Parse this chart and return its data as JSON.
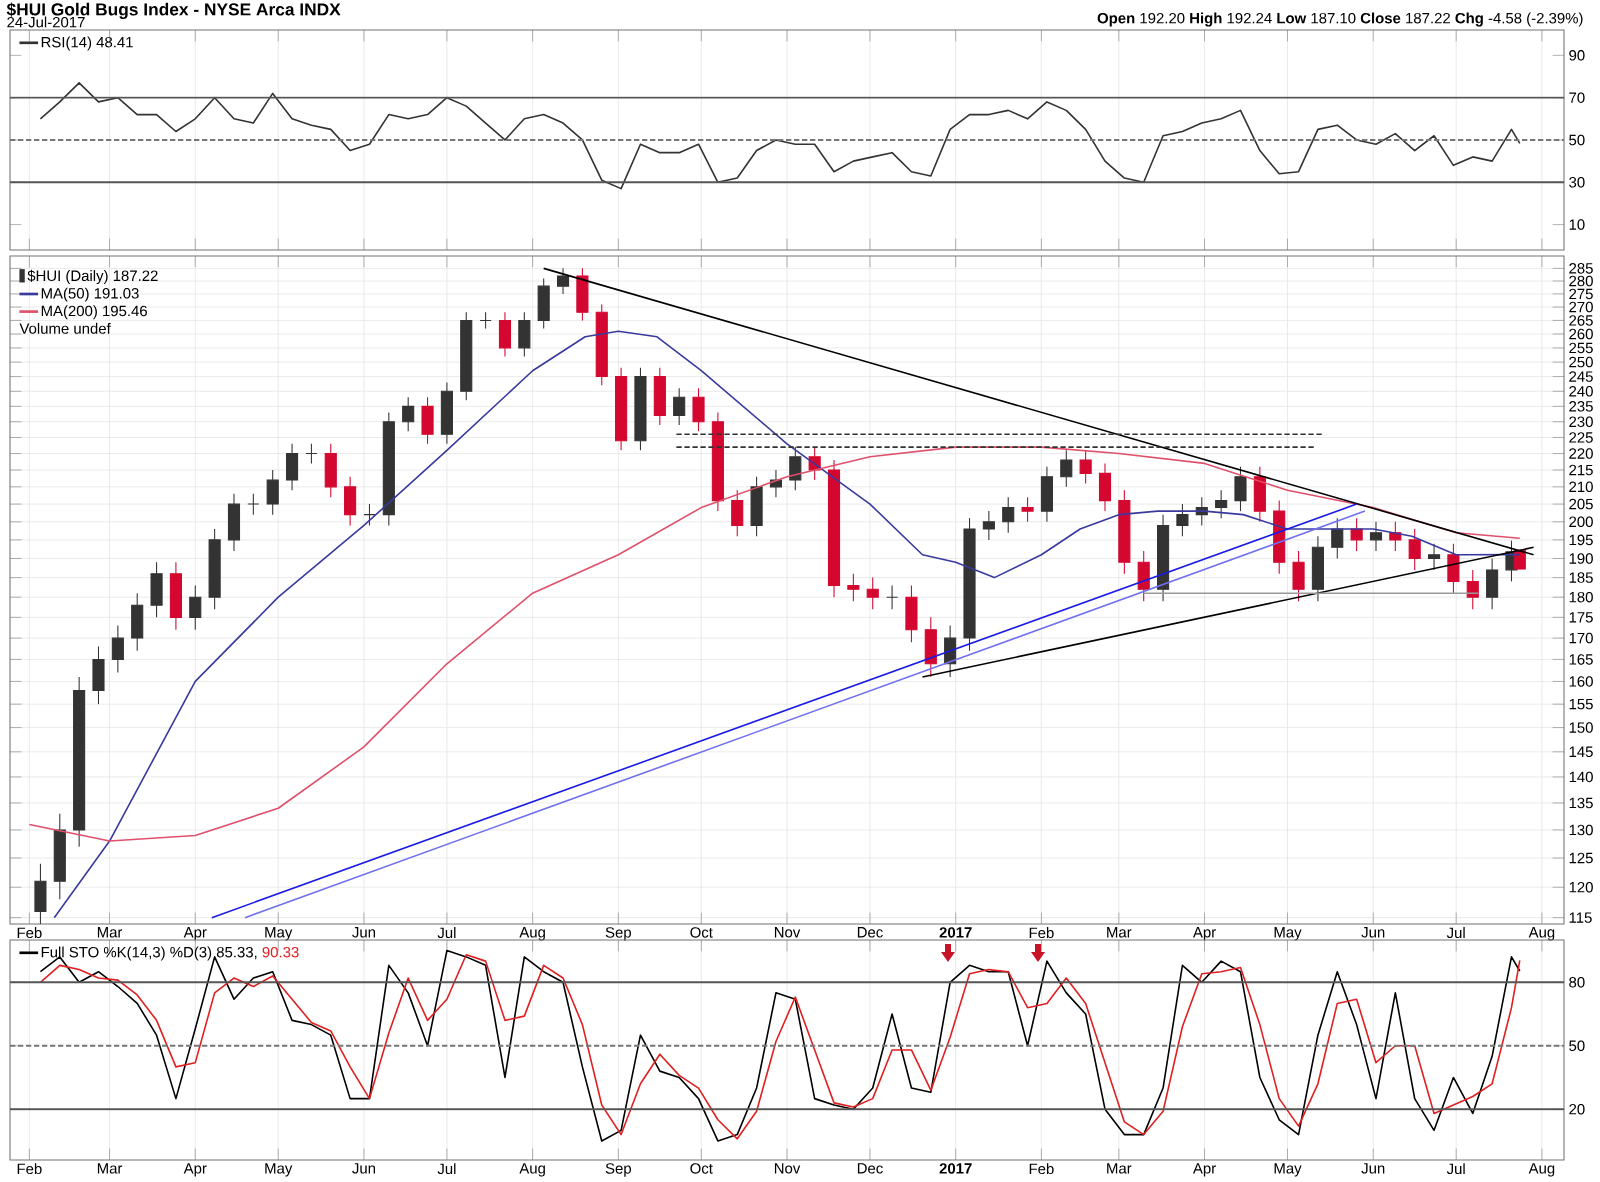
{
  "chart_data": [
    {
      "type": "line",
      "title": "$HUI Gold Bugs Index - NYSE Arca INDX",
      "subtitle": "24-Jul-2017",
      "annotations": [
        "**Open** 192.20 **High** 192.24 **Low** 187.10 **Close** 187.22 **Chg** -4.58 (-2.39%)"
      ],
      "x": [
        "2016-02-05",
        "2016-02-12",
        "2016-02-19",
        "2016-02-26",
        "2016-03-04",
        "2016-03-11",
        "2016-03-18",
        "2016-03-25",
        "2016-04-01",
        "2016-04-08",
        "2016-04-15",
        "2016-04-22",
        "2016-04-29",
        "2016-05-06",
        "2016-05-13",
        "2016-05-20",
        "2016-05-27",
        "2016-06-03",
        "2016-06-10",
        "2016-06-17",
        "2016-06-24",
        "2016-07-01",
        "2016-07-08",
        "2016-07-15",
        "2016-07-22",
        "2016-07-29",
        "2016-08-05",
        "2016-08-12",
        "2016-08-19",
        "2016-08-26",
        "2016-09-02",
        "2016-09-09",
        "2016-09-16",
        "2016-09-23",
        "2016-09-30",
        "2016-10-07",
        "2016-10-14",
        "2016-10-21",
        "2016-10-28",
        "2016-11-04",
        "2016-11-11",
        "2016-11-18",
        "2016-11-25",
        "2016-12-02",
        "2016-12-09",
        "2016-12-16",
        "2016-12-23",
        "2016-12-30",
        "2017-01-06",
        "2017-01-13",
        "2017-01-20",
        "2017-01-27",
        "2017-02-03",
        "2017-02-10",
        "2017-02-17",
        "2017-02-24",
        "2017-03-03",
        "2017-03-10",
        "2017-03-17",
        "2017-03-24",
        "2017-03-31",
        "2017-04-07",
        "2017-04-14",
        "2017-04-21",
        "2017-04-28",
        "2017-05-05",
        "2017-05-12",
        "2017-05-19",
        "2017-05-26",
        "2017-06-02",
        "2017-06-09",
        "2017-06-16",
        "2017-06-23",
        "2017-06-30",
        "2017-07-07",
        "2017-07-14",
        "2017-07-21",
        "2017-07-24"
      ],
      "series": [
        {
          "name": "RSI(14) 48.41",
          "color": "#333333",
          "values": [
            60,
            68,
            77,
            68,
            70,
            62,
            62,
            54,
            60,
            70,
            60,
            58,
            72,
            60,
            57,
            55,
            45,
            48,
            62,
            60,
            62,
            70,
            66,
            58,
            50,
            60,
            62,
            58,
            50,
            31,
            27,
            48,
            44,
            44,
            48,
            30,
            32,
            45,
            50,
            48,
            48,
            35,
            40,
            42,
            44,
            35,
            33,
            55,
            62,
            62,
            64,
            60,
            68,
            64,
            55,
            40,
            32,
            30,
            52,
            54,
            58,
            60,
            64,
            45,
            34,
            35,
            55,
            57,
            50,
            48,
            53,
            45,
            52,
            38,
            42,
            40,
            55,
            48.41
          ]
        }
      ],
      "xlim": [
        "2016-01-25",
        "2017-08-09"
      ],
      "ylim": [
        -2,
        102
      ],
      "xticks": [
        {
          "value": "2016-02-01",
          "label": null
        },
        {
          "value": "2016-03-01",
          "label": null
        },
        {
          "value": "2016-04-01",
          "label": null
        },
        {
          "value": "2016-05-01",
          "label": null
        },
        {
          "value": "2016-06-01",
          "label": null
        },
        {
          "value": "2016-07-01",
          "label": null
        },
        {
          "value": "2016-08-01",
          "label": null
        },
        {
          "value": "2016-09-01",
          "label": null
        },
        {
          "value": "2016-10-01",
          "label": null
        },
        {
          "value": "2016-11-01",
          "label": null
        },
        {
          "value": "2016-12-01",
          "label": null
        },
        {
          "value": "2017-01-01",
          "label": null
        },
        {
          "value": "2017-02-01",
          "label": null
        },
        {
          "value": "2017-03-01",
          "label": null
        },
        {
          "value": "2017-04-01",
          "label": null
        },
        {
          "value": "2017-05-01",
          "label": null
        },
        {
          "value": "2017-06-01",
          "label": null
        },
        {
          "value": "2017-07-01",
          "label": null
        },
        {
          "value": "2017-08-01",
          "label": null
        }
      ],
      "yticks": [
        10,
        30,
        50,
        70,
        90
      ],
      "ref_lines": [
        {
          "axis": "y",
          "value": 70,
          "color": "#555555"
        },
        {
          "axis": "y",
          "value": 30,
          "color": "#555555"
        },
        {
          "axis": "y",
          "value": 50,
          "color": "#777777",
          "line_style": "dashed"
        }
      ],
      "grid": "x",
      "legend": "top left",
      "tick_labels": "y"
    },
    {
      "type": "candlestick",
      "log": true,
      "annotations": [
        "Volume undef"
      ],
      "x": [
        "2016-02-05",
        "2016-02-12",
        "2016-02-19",
        "2016-02-26",
        "2016-03-04",
        "2016-03-11",
        "2016-03-18",
        "2016-03-25",
        "2016-04-01",
        "2016-04-08",
        "2016-04-15",
        "2016-04-22",
        "2016-04-29",
        "2016-05-06",
        "2016-05-13",
        "2016-05-20",
        "2016-05-27",
        "2016-06-03",
        "2016-06-10",
        "2016-06-17",
        "2016-06-24",
        "2016-07-01",
        "2016-07-08",
        "2016-07-15",
        "2016-07-22",
        "2016-07-29",
        "2016-08-05",
        "2016-08-12",
        "2016-08-19",
        "2016-08-26",
        "2016-09-02",
        "2016-09-09",
        "2016-09-16",
        "2016-09-23",
        "2016-09-30",
        "2016-10-07",
        "2016-10-14",
        "2016-10-21",
        "2016-10-28",
        "2016-11-04",
        "2016-11-11",
        "2016-11-18",
        "2016-11-25",
        "2016-12-02",
        "2016-12-09",
        "2016-12-16",
        "2016-12-23",
        "2016-12-30",
        "2017-01-06",
        "2017-01-13",
        "2017-01-20",
        "2017-01-27",
        "2017-02-03",
        "2017-02-10",
        "2017-02-17",
        "2017-02-24",
        "2017-03-03",
        "2017-03-10",
        "2017-03-17",
        "2017-03-24",
        "2017-03-31",
        "2017-04-07",
        "2017-04-14",
        "2017-04-21",
        "2017-04-28",
        "2017-05-05",
        "2017-05-12",
        "2017-05-19",
        "2017-05-26",
        "2017-06-02",
        "2017-06-09",
        "2017-06-16",
        "2017-06-23",
        "2017-06-30",
        "2017-07-07",
        "2017-07-14",
        "2017-07-21",
        "2017-07-24"
      ],
      "series": [
        {
          "type": "candlestick",
          "name": "$HUI (Daily) 187.22",
          "ohlc": [
            [
              116,
              124,
              113,
              121
            ],
            [
              121,
              133,
              118,
              130
            ],
            [
              130,
              161,
              127,
              158
            ],
            [
              158,
              168,
              155,
              165
            ],
            [
              165,
              173,
              162,
              170
            ],
            [
              170,
              181,
              167,
              178
            ],
            [
              178,
              189,
              175,
              186
            ],
            [
              186,
              189,
              172,
              175
            ],
            [
              175,
              183,
              172,
              180
            ],
            [
              180,
              198,
              177,
              195
            ],
            [
              195,
              208,
              192,
              205
            ],
            [
              205,
              208,
              202,
              205
            ],
            [
              205,
              215,
              202,
              212
            ],
            [
              212,
              223,
              209,
              220
            ],
            [
              220,
              223,
              217,
              220
            ],
            [
              220,
              223,
              207,
              210
            ],
            [
              210,
              213,
              199,
              202
            ],
            [
              202,
              205,
              199,
              202
            ],
            [
              202,
              233,
              199,
              230
            ],
            [
              230,
              238,
              227,
              235
            ],
            [
              235,
              238,
              223,
              226
            ],
            [
              226,
              243,
              223,
              240
            ],
            [
              240,
              268,
              237,
              265
            ],
            [
              265,
              268,
              262,
              265
            ],
            [
              265,
              268,
              252,
              255
            ],
            [
              255,
              268,
              252,
              265
            ],
            [
              265,
              281,
              262,
              278
            ],
            [
              278,
              285,
              275,
              282
            ],
            [
              282,
              285,
              265,
              268
            ],
            [
              268,
              271,
              242,
              245
            ],
            [
              245,
              248,
              221,
              224
            ],
            [
              224,
              248,
              221,
              245
            ],
            [
              245,
              248,
              229,
              232
            ],
            [
              232,
              241,
              229,
              238
            ],
            [
              238,
              241,
              227,
              230
            ],
            [
              230,
              233,
              203,
              206
            ],
            [
              206,
              209,
              196,
              199
            ],
            [
              199,
              213,
              196,
              210
            ],
            [
              210,
              215,
              207,
              212
            ],
            [
              212,
              222,
              209,
              219
            ],
            [
              219,
              222,
              212,
              215
            ],
            [
              215,
              218,
              180,
              183
            ],
            [
              183,
              186,
              179,
              182
            ],
            [
              182,
              185,
              177,
              180
            ],
            [
              180,
              183,
              177,
              180
            ],
            [
              180,
              183,
              169,
              172
            ],
            [
              172,
              175,
              161,
              164
            ],
            [
              164,
              173,
              161,
              170
            ],
            [
              170,
              201,
              167,
              198
            ],
            [
              198,
              203,
              195,
              200
            ],
            [
              200,
              207,
              197,
              204
            ],
            [
              204,
              207,
              200,
              203
            ],
            [
              203,
              216,
              200,
              213
            ],
            [
              213,
              221,
              210,
              218
            ],
            [
              218,
              221,
              211,
              214
            ],
            [
              214,
              217,
              203,
              206
            ],
            [
              206,
              209,
              186,
              189
            ],
            [
              189,
              192,
              179,
              182
            ],
            [
              182,
              202,
              179,
              199
            ],
            [
              199,
              205,
              196,
              202
            ],
            [
              202,
              207,
              199,
              204
            ],
            [
              204,
              209,
              201,
              206
            ],
            [
              206,
              216,
              203,
              213
            ],
            [
              213,
              216,
              200,
              203
            ],
            [
              203,
              206,
              186,
              189
            ],
            [
              189,
              192,
              179,
              182
            ],
            [
              182,
              196,
              179,
              193
            ],
            [
              193,
              201,
              190,
              198
            ],
            [
              198,
              201,
              192,
              195
            ],
            [
              195,
              200,
              192,
              197
            ],
            [
              197,
              200,
              192,
              195
            ],
            [
              195,
              198,
              187,
              190
            ],
            [
              190,
              194,
              187,
              191
            ],
            [
              191,
              194,
              181,
              184
            ],
            [
              184,
              187,
              177,
              180
            ],
            [
              180,
              190,
              177,
              187
            ],
            [
              187,
              194.8,
              184,
              191.8
            ],
            [
              192.2,
              192.24,
              187.1,
              187.22
            ]
          ],
          "colors": [
            "#333333",
            "#333333",
            "#333333",
            "#333333",
            "#333333",
            "#333333",
            "#333333",
            "#d3072f",
            "#333333",
            "#333333",
            "#333333",
            "#333333",
            "#333333",
            "#333333",
            "#333333",
            "#d3072f",
            "#d3072f",
            "#333333",
            "#333333",
            "#333333",
            "#d3072f",
            "#333333",
            "#333333",
            "#333333",
            "#d3072f",
            "#333333",
            "#333333",
            "#333333",
            "#d3072f",
            "#d3072f",
            "#d3072f",
            "#333333",
            "#d3072f",
            "#333333",
            "#d3072f",
            "#d3072f",
            "#d3072f",
            "#333333",
            "#333333",
            "#333333",
            "#d3072f",
            "#d3072f",
            "#d3072f",
            "#d3072f",
            "#333333",
            "#d3072f",
            "#d3072f",
            "#333333",
            "#333333",
            "#333333",
            "#333333",
            "#d3072f",
            "#333333",
            "#333333",
            "#d3072f",
            "#d3072f",
            "#d3072f",
            "#d3072f",
            "#333333",
            "#333333",
            "#333333",
            "#333333",
            "#333333",
            "#d3072f",
            "#d3072f",
            "#d3072f",
            "#333333",
            "#333333",
            "#d3072f",
            "#333333",
            "#d3072f",
            "#d3072f",
            "#333333",
            "#d3072f",
            "#d3072f",
            "#333333",
            "#333333",
            "#d3072f"
          ]
        },
        {
          "type": "line",
          "name": "MA(50) 191.03",
          "color": "#3a3a9e",
          "x": [
            "2016-02-10",
            "2016-03-01",
            "2016-04-01",
            "2016-05-01",
            "2016-06-01",
            "2016-07-01",
            "2016-08-01",
            "2016-08-20",
            "2016-09-01",
            "2016-09-15",
            "2016-10-01",
            "2016-11-01",
            "2016-12-01",
            "2016-12-20",
            "2017-01-01",
            "2017-01-15",
            "2017-02-01",
            "2017-02-15",
            "2017-03-01",
            "2017-03-15",
            "2017-04-01",
            "2017-04-15",
            "2017-05-01",
            "2017-05-15",
            "2017-06-01",
            "2017-06-15",
            "2017-07-01",
            "2017-07-24"
          ],
          "values": [
            115,
            128,
            160,
            180,
            199,
            221,
            247,
            259,
            261,
            259,
            247,
            223,
            205,
            191,
            189,
            185,
            191,
            198,
            202,
            203,
            203,
            202,
            198,
            198,
            198,
            196,
            191,
            191.03
          ]
        },
        {
          "type": "line",
          "name": "MA(200) 195.46",
          "color": "#e0506a",
          "x": [
            "2016-02-01",
            "2016-03-01",
            "2016-04-01",
            "2016-05-01",
            "2016-06-01",
            "2016-07-01",
            "2016-08-01",
            "2016-09-01",
            "2016-10-01",
            "2016-11-01",
            "2016-12-01",
            "2017-01-01",
            "2017-02-01",
            "2017-03-01",
            "2017-04-01",
            "2017-05-01",
            "2017-06-01",
            "2017-07-01",
            "2017-07-24"
          ],
          "values": [
            131,
            128,
            129,
            134,
            146,
            164,
            181,
            191,
            204,
            213,
            219,
            222,
            222,
            220,
            217,
            209,
            204,
            197,
            195.46
          ]
        },
        {
          "type": "line",
          "color": "#000000",
          "x": [
            "2016-08-05",
            "2017-07-29"
          ],
          "values": [
            285,
            191
          ]
        },
        {
          "type": "line",
          "color": "#000000",
          "x": [
            "2016-12-20",
            "2017-07-29"
          ],
          "values": [
            161,
            193
          ]
        },
        {
          "type": "line",
          "color": "#1a1ae6",
          "x": [
            "2016-04-07",
            "2017-05-26"
          ],
          "values": [
            115,
            205
          ]
        },
        {
          "type": "line",
          "color": "#7070f0",
          "x": [
            "2016-04-19",
            "2017-05-29"
          ],
          "values": [
            115,
            203
          ]
        },
        {
          "type": "line",
          "color": "#333333",
          "line_style": "dashed",
          "x": [
            "2016-09-22",
            "2017-05-14"
          ],
          "values": [
            226,
            226
          ]
        },
        {
          "type": "line",
          "color": "#333333",
          "line_style": "dashed",
          "x": [
            "2016-09-22",
            "2017-05-11"
          ],
          "values": [
            222,
            222
          ]
        },
        {
          "type": "line",
          "color": "#999999",
          "x": [
            "2017-03-10",
            "2017-07-09"
          ],
          "values": [
            181,
            181
          ]
        }
      ],
      "xlim": [
        "2016-01-25",
        "2017-08-09"
      ],
      "ylim": [
        114,
        290
      ],
      "xticks": [
        {
          "value": "2016-02-01",
          "label": "Feb"
        },
        {
          "value": "2016-03-01",
          "label": "Mar"
        },
        {
          "value": "2016-04-01",
          "label": "Apr"
        },
        {
          "value": "2016-05-01",
          "label": "May"
        },
        {
          "value": "2016-06-01",
          "label": "Jun"
        },
        {
          "value": "2016-07-01",
          "label": "Jul"
        },
        {
          "value": "2016-08-01",
          "label": "Aug"
        },
        {
          "value": "2016-09-01",
          "label": "Sep"
        },
        {
          "value": "2016-10-01",
          "label": "Oct"
        },
        {
          "value": "2016-11-01",
          "label": "Nov"
        },
        {
          "value": "2016-12-01",
          "label": "Dec"
        },
        {
          "value": "2017-01-01",
          "label": "**2017**"
        },
        {
          "value": "2017-02-01",
          "label": "Feb"
        },
        {
          "value": "2017-03-01",
          "label": "Mar"
        },
        {
          "value": "2017-04-01",
          "label": "Apr"
        },
        {
          "value": "2017-05-01",
          "label": "May"
        },
        {
          "value": "2017-06-01",
          "label": "Jun"
        },
        {
          "value": "2017-07-01",
          "label": "Jul"
        },
        {
          "value": "2017-08-01",
          "label": "Aug"
        }
      ],
      "yticks": [
        115,
        120,
        125,
        130,
        135,
        140,
        145,
        150,
        155,
        160,
        165,
        170,
        175,
        180,
        185,
        190,
        195,
        200,
        205,
        210,
        215,
        220,
        225,
        230,
        235,
        240,
        245,
        250,
        255,
        260,
        265,
        270,
        275,
        280,
        285
      ],
      "grid": true,
      "legend": "top left"
    },
    {
      "type": "line",
      "legend_title": "Full STO %K(14,3) %D(3)",
      "x": [
        "2016-02-05",
        "2016-02-12",
        "2016-02-19",
        "2016-02-26",
        "2016-03-04",
        "2016-03-11",
        "2016-03-18",
        "2016-03-25",
        "2016-04-01",
        "2016-04-08",
        "2016-04-15",
        "2016-04-22",
        "2016-04-29",
        "2016-05-06",
        "2016-05-13",
        "2016-05-20",
        "2016-05-27",
        "2016-06-03",
        "2016-06-10",
        "2016-06-17",
        "2016-06-24",
        "2016-07-01",
        "2016-07-08",
        "2016-07-15",
        "2016-07-22",
        "2016-07-29",
        "2016-08-05",
        "2016-08-12",
        "2016-08-19",
        "2016-08-26",
        "2016-09-02",
        "2016-09-09",
        "2016-09-16",
        "2016-09-23",
        "2016-09-30",
        "2016-10-07",
        "2016-10-14",
        "2016-10-21",
        "2016-10-28",
        "2016-11-04",
        "2016-11-11",
        "2016-11-18",
        "2016-11-25",
        "2016-12-02",
        "2016-12-09",
        "2016-12-16",
        "2016-12-23",
        "2016-12-30",
        "2017-01-06",
        "2017-01-13",
        "2017-01-20",
        "2017-01-27",
        "2017-02-03",
        "2017-02-10",
        "2017-02-17",
        "2017-02-24",
        "2017-03-03",
        "2017-03-10",
        "2017-03-17",
        "2017-03-24",
        "2017-03-31",
        "2017-04-07",
        "2017-04-14",
        "2017-04-21",
        "2017-04-28",
        "2017-05-05",
        "2017-05-12",
        "2017-05-19",
        "2017-05-26",
        "2017-06-02",
        "2017-06-09",
        "2017-06-16",
        "2017-06-23",
        "2017-06-30",
        "2017-07-07",
        "2017-07-14",
        "2017-07-21",
        "2017-07-24"
      ],
      "series": [
        {
          "name": "85.33,",
          "color": "#000000",
          "values": [
            85,
            92,
            80,
            85,
            78,
            70,
            55,
            25,
            58,
            92,
            72,
            82,
            85,
            62,
            60,
            55,
            25,
            25,
            88,
            75,
            50,
            95,
            92,
            88,
            35,
            92,
            85,
            80,
            40,
            5,
            10,
            55,
            38,
            35,
            25,
            5,
            8,
            30,
            75,
            72,
            25,
            22,
            20,
            30,
            65,
            30,
            28,
            80,
            88,
            85,
            85,
            50,
            90,
            75,
            65,
            20,
            8,
            8,
            30,
            88,
            80,
            90,
            85,
            35,
            15,
            8,
            55,
            85,
            60,
            25,
            75,
            25,
            10,
            35,
            18,
            45,
            92,
            85.33
          ]
        },
        {
          "name": "90.33",
          "color": "#e02020",
          "values": [
            80,
            88,
            86,
            82,
            81,
            74,
            62,
            40,
            42,
            75,
            82,
            78,
            83,
            72,
            61,
            57,
            40,
            25,
            56,
            82,
            62,
            72,
            93,
            90,
            62,
            64,
            88,
            82,
            60,
            22,
            8,
            32,
            46,
            36,
            30,
            15,
            6,
            19,
            52,
            73,
            48,
            23,
            21,
            25,
            48,
            48,
            29,
            54,
            84,
            86,
            85,
            68,
            70,
            82,
            70,
            42,
            14,
            8,
            19,
            59,
            84,
            85,
            87,
            60,
            25,
            12,
            32,
            70,
            72,
            42,
            50,
            50,
            18,
            22,
            26,
            32,
            68,
            90.33
          ]
        }
      ],
      "xlim": [
        "2016-01-25",
        "2017-08-09"
      ],
      "ylim": [
        -4,
        100
      ],
      "xticks": [
        {
          "value": "2016-02-01",
          "label": "Feb"
        },
        {
          "value": "2016-03-01",
          "label": "Mar"
        },
        {
          "value": "2016-04-01",
          "label": "Apr"
        },
        {
          "value": "2016-05-01",
          "label": "May"
        },
        {
          "value": "2016-06-01",
          "label": "Jun"
        },
        {
          "value": "2016-07-01",
          "label": "Jul"
        },
        {
          "value": "2016-08-01",
          "label": "Aug"
        },
        {
          "value": "2016-09-01",
          "label": "Sep"
        },
        {
          "value": "2016-10-01",
          "label": "Oct"
        },
        {
          "value": "2016-11-01",
          "label": "Nov"
        },
        {
          "value": "2016-12-01",
          "label": "Dec"
        },
        {
          "value": "2017-01-01",
          "label": "**2017**"
        },
        {
          "value": "2017-02-01",
          "label": "Feb"
        },
        {
          "value": "2017-03-01",
          "label": "Mar"
        },
        {
          "value": "2017-04-01",
          "label": "Apr"
        },
        {
          "value": "2017-05-01",
          "label": "May"
        },
        {
          "value": "2017-06-01",
          "label": "Jun"
        },
        {
          "value": "2017-07-01",
          "label": "Jul"
        },
        {
          "value": "2017-08-01",
          "label": "Aug"
        }
      ],
      "yticks": [
        20,
        50,
        80
      ],
      "ref_lines": [
        {
          "axis": "y",
          "value": 80,
          "color": "#555555"
        },
        {
          "axis": "y",
          "value": 20,
          "color": "#555555"
        },
        {
          "axis": "y",
          "value": 50,
          "color": "#777777",
          "line_style": "dashed"
        }
      ],
      "grid": "x",
      "legend": "top left"
    }
  ]
}
